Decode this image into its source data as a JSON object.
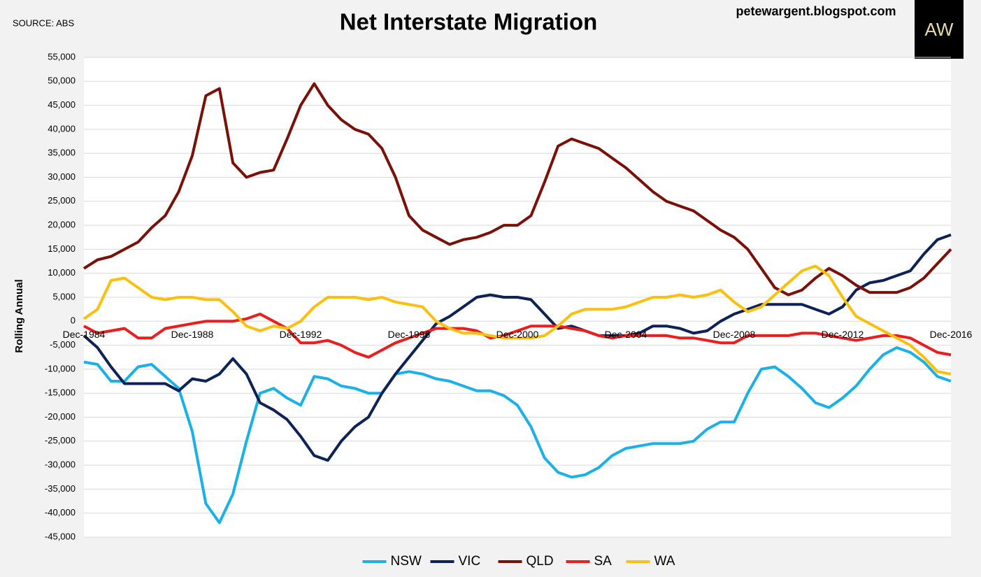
{
  "chart_data": {
    "type": "line",
    "title": "Net Interstate Migration",
    "source": "SOURCE: ABS",
    "site": "petewargent.blogspot.com",
    "logo": "AW",
    "ylabel": "Rolling Annual",
    "categories": [
      "Dec-1984",
      null,
      null,
      null,
      null,
      null,
      null,
      null,
      "Dec-1988",
      null,
      null,
      null,
      null,
      null,
      null,
      null,
      "Dec-1992",
      null,
      null,
      null,
      null,
      null,
      null,
      null,
      "Dec-1996",
      null,
      null,
      null,
      null,
      null,
      null,
      null,
      "Dec-2000",
      null,
      null,
      null,
      null,
      null,
      null,
      null,
      "Dec-2004",
      null,
      null,
      null,
      null,
      null,
      null,
      null,
      "Dec-2008",
      null,
      null,
      null,
      null,
      null,
      null,
      null,
      "Dec-2012",
      null,
      null,
      null,
      null,
      null,
      null,
      null,
      "Dec-2016"
    ],
    "series": [
      {
        "name": "NSW",
        "color": "#1ab0e8",
        "values": [
          -8500,
          -9000,
          -12500,
          -12500,
          -9500,
          -9000,
          -11500,
          -14000,
          -23000,
          -38000,
          -42000,
          -36000,
          -25000,
          -15000,
          -14000,
          -16000,
          -17500,
          -11500,
          -12000,
          -13500,
          -14000,
          -15000,
          -15000,
          -11000,
          -10500,
          -11000,
          -12000,
          -12500,
          -13500,
          -14500,
          -14500,
          -15500,
          -17500,
          -22000,
          -28500,
          -31500,
          -32500,
          -32000,
          -30500,
          -28000,
          -26500,
          -26000,
          -25500,
          -25500,
          -25500,
          -25000,
          -22500,
          -21000,
          -21000,
          -15000,
          -10000,
          -9500,
          -11500,
          -14000,
          -17000,
          -18000,
          -16000,
          -13500,
          -10000,
          -7000,
          -5500,
          -6500,
          -8500,
          -11500,
          -12500
        ]
      },
      {
        "name": "VIC",
        "color": "#0d2257",
        "values": [
          -3000,
          -5500,
          -9500,
          -13000,
          -13000,
          -13000,
          -13000,
          -14500,
          -12000,
          -12500,
          -11000,
          -7800,
          -11000,
          -17000,
          -18500,
          -20500,
          -24000,
          -28000,
          -29000,
          -25000,
          -22000,
          -20000,
          -15000,
          -11000,
          -7500,
          -4000,
          -500,
          1000,
          3000,
          5000,
          5500,
          5000,
          5000,
          4500,
          1500,
          -1500,
          -1000,
          -2000,
          -3000,
          -3000,
          -3000,
          -2500,
          -1000,
          -1000,
          -1500,
          -2500,
          -2000,
          0,
          1500,
          2500,
          3500,
          3500,
          3500,
          3500,
          2500,
          1500,
          3000,
          6500,
          8000,
          8500,
          9500,
          10500,
          14000,
          17000,
          18000
        ]
      },
      {
        "name": "QLD",
        "color": "#7b1008",
        "values": [
          11000,
          12800,
          13500,
          15000,
          16500,
          19500,
          22000,
          27000,
          34500,
          47000,
          48500,
          33000,
          30000,
          31000,
          31500,
          38000,
          45000,
          49500,
          45000,
          42000,
          40000,
          39000,
          36000,
          30000,
          22000,
          19000,
          17500,
          16000,
          17000,
          17500,
          18500,
          20000,
          20000,
          22000,
          29000,
          36500,
          38000,
          37000,
          36000,
          34000,
          32000,
          29500,
          27000,
          25000,
          24000,
          23000,
          21000,
          19000,
          17500,
          15000,
          11000,
          7000,
          5500,
          6500,
          9000,
          11000,
          9500,
          7500,
          6000,
          6000,
          6000,
          7000,
          9000,
          12000,
          15000
        ]
      },
      {
        "name": "SA",
        "color": "#ee1c1c",
        "values": [
          -1000,
          -2500,
          -2000,
          -1500,
          -3500,
          -3500,
          -1500,
          -1000,
          -500,
          0,
          0,
          0,
          500,
          1500,
          0,
          -1500,
          -4500,
          -4500,
          -4000,
          -5000,
          -6500,
          -7500,
          -6000,
          -4500,
          -3500,
          -2500,
          -1500,
          -1500,
          -1500,
          -2000,
          -3500,
          -3000,
          -2000,
          -1000,
          -1000,
          -1000,
          -1500,
          -2000,
          -3000,
          -3500,
          -3000,
          -3000,
          -3000,
          -3000,
          -3500,
          -3500,
          -4000,
          -4500,
          -4500,
          -3000,
          -3000,
          -3000,
          -3000,
          -2500,
          -2500,
          -3000,
          -3500,
          -4000,
          -3500,
          -3000,
          -3000,
          -3500,
          -5000,
          -6500,
          -7000
        ]
      },
      {
        "name": "WA",
        "color": "#fbbf0e",
        "values": [
          500,
          2500,
          8500,
          9000,
          7000,
          5000,
          4500,
          5000,
          5000,
          4500,
          4500,
          2000,
          -1000,
          -2000,
          -1000,
          -1500,
          0,
          3000,
          5000,
          5000,
          5000,
          4500,
          5000,
          4000,
          3500,
          3000,
          0,
          -1500,
          -2500,
          -2500,
          -3000,
          -3500,
          -3500,
          -3500,
          -3000,
          -1000,
          1500,
          2500,
          2500,
          2500,
          3000,
          4000,
          5000,
          5000,
          5500,
          5000,
          5500,
          6500,
          4000,
          2000,
          3000,
          5500,
          8000,
          10500,
          11500,
          9500,
          5000,
          1000,
          -500,
          -2000,
          -3500,
          -5000,
          -7500,
          -10500,
          -11000
        ]
      }
    ],
    "ylim": [
      -45000,
      55000
    ],
    "yticks": [
      {
        "value": -45000,
        "label": "-45,000"
      },
      {
        "value": -40000,
        "label": "-40,000"
      },
      {
        "value": -35000,
        "label": "-35,000"
      },
      {
        "value": -30000,
        "label": "-30,000"
      },
      {
        "value": -25000,
        "label": "-25,000"
      },
      {
        "value": -20000,
        "label": "-20,000"
      },
      {
        "value": -15000,
        "label": "-15,000"
      },
      {
        "value": -10000,
        "label": "-10,000"
      },
      {
        "value": -5000,
        "label": "-5,000"
      },
      0,
      {
        "value": 5000,
        "label": "5,000"
      },
      {
        "value": 10000,
        "label": "10,000"
      },
      {
        "value": 15000,
        "label": "15,000"
      },
      {
        "value": 20000,
        "label": "20,000"
      },
      {
        "value": 25000,
        "label": "25,000"
      },
      {
        "value": 30000,
        "label": "30,000"
      },
      {
        "value": 35000,
        "label": "35,000"
      },
      {
        "value": 40000,
        "label": "40,000"
      },
      {
        "value": 45000,
        "label": "45,000"
      },
      {
        "value": 50000,
        "label": "50,000"
      },
      {
        "value": 55000,
        "label": "55,000"
      }
    ],
    "grid": true,
    "legend": "bottom"
  }
}
